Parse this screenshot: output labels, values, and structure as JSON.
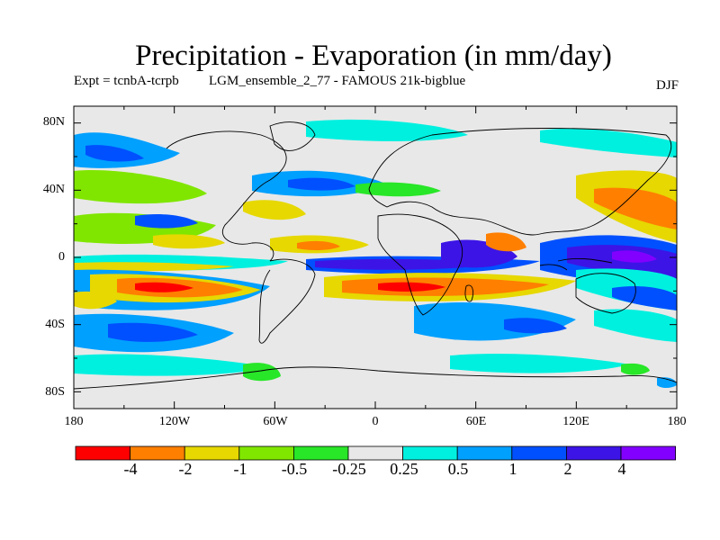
{
  "header": {
    "title": "Precipitation - Evaporation (in mm/day)",
    "expt": "Expt = tcnbA-tcrpb",
    "run": "LGM_ensemble_2_77 - FAMOUS 21k-bigblue",
    "season": "DJF"
  },
  "map": {
    "y_ticks": [
      "80N",
      "40N",
      "0",
      "40S",
      "80S"
    ],
    "x_ticks": [
      "180",
      "120W",
      "60W",
      "0",
      "60E",
      "120E",
      "180"
    ]
  },
  "colorbar": {
    "colors": [
      "#ff0000",
      "#ff7f00",
      "#e6d800",
      "#80e600",
      "#28e628",
      "#e8e8e8",
      "#00f0e0",
      "#00a0ff",
      "#0050ff",
      "#3c14e6",
      "#8200ff"
    ],
    "labels": [
      "-4",
      "-2",
      "-1",
      "-0.5",
      "-0.25",
      "0.25",
      "0.5",
      "1",
      "2",
      "4"
    ]
  }
}
